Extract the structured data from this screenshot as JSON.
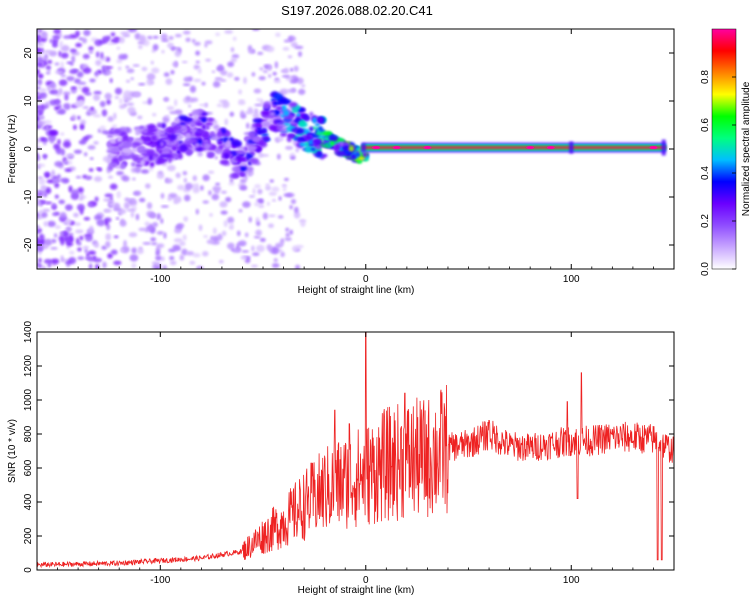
{
  "title": "S197.2026.088.02.20.C41",
  "chart_data": [
    {
      "type": "heatmap",
      "title": "S197.2026.088.02.20.C41",
      "xlabel": "Height of straight line (km)",
      "ylabel": "Frequency (Hz)",
      "xlim": [
        -160,
        150
      ],
      "ylim": [
        -25,
        25
      ],
      "xticks": [
        -100,
        0,
        100
      ],
      "yticks": [
        -20,
        -10,
        0,
        10,
        20
      ],
      "colorbar": {
        "label": "Normalized spectral amplitude",
        "range": [
          0,
          1
        ],
        "ticks": [
          "0.0",
          "0.2",
          "0.4",
          "0.6",
          "0.8"
        ],
        "colors": [
          "#ffffff",
          "#c8a6ff",
          "#8f4dff",
          "#6a00ff",
          "#0000ff",
          "#00bfff",
          "#00ff7f",
          "#00ff00",
          "#ffff00",
          "#ff8000",
          "#ff0000",
          "#ff00a0"
        ]
      },
      "signal": {
        "description_points_km": [
          -120,
          -100,
          -80,
          -60,
          -45,
          -30,
          -15,
          -5,
          0,
          50,
          100,
          145
        ],
        "frequency_hz": [
          0,
          1,
          4,
          -3,
          8,
          4,
          1,
          -1,
          -1.5,
          0.3,
          0.3,
          0.3
        ],
        "amplitude": [
          0.2,
          0.25,
          0.3,
          0.3,
          0.35,
          0.45,
          0.55,
          0.6,
          0.65,
          0.95,
          0.95,
          0.9
        ]
      }
    },
    {
      "type": "line",
      "title": "",
      "xlabel": "Height of straight line (km)",
      "ylabel": "SNR (10 * v/v)",
      "xlim": [
        -160,
        150
      ],
      "ylim": [
        0,
        1400
      ],
      "xticks": [
        -100,
        0,
        100
      ],
      "yticks": [
        0,
        200,
        400,
        600,
        800,
        1000,
        1200,
        1400
      ],
      "color": "#ee2222",
      "envelope": {
        "x": [
          -160,
          -120,
          -80,
          -60,
          -50,
          -40,
          -30,
          -20,
          -10,
          0,
          10,
          20,
          30,
          40,
          50,
          60,
          70,
          80,
          90,
          100,
          110,
          120,
          130,
          140,
          150
        ],
        "y": [
          30,
          40,
          70,
          110,
          200,
          280,
          380,
          470,
          520,
          560,
          620,
          650,
          660,
          720,
          740,
          800,
          730,
          720,
          740,
          760,
          760,
          780,
          780,
          770,
          700
        ]
      },
      "spikes": [
        {
          "x": -15,
          "y": 940
        },
        {
          "x": -8,
          "y": 860
        },
        {
          "x": 0,
          "y": 1400
        },
        {
          "x": 19,
          "y": 1040
        },
        {
          "x": 60,
          "y": 880
        },
        {
          "x": 98,
          "y": 990
        },
        {
          "x": 105,
          "y": 1160
        }
      ],
      "dips": [
        {
          "x": 103,
          "y": 420
        },
        {
          "x": 142,
          "y": 60
        },
        {
          "x": 144,
          "y": 60
        }
      ]
    }
  ]
}
